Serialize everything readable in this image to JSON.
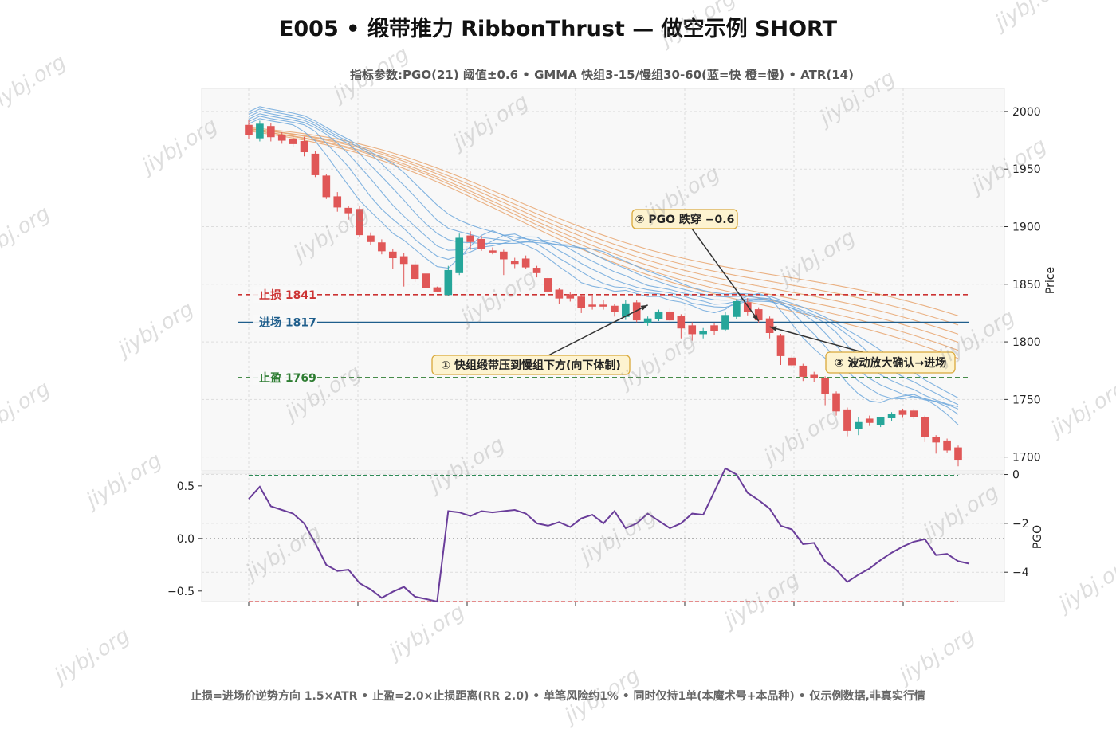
{
  "chart_data": {
    "type": "line",
    "title": "E005 • 缎带推力 RibbonThrust — 做空示例 SHORT",
    "subtitle": "指标参数:PGO(21) 阈值±0.6  •  GMMA 快组3-15/慢组30-60(蓝=快 橙=慢)  •  ATR(14)",
    "footer": "止损=进场价逆势方向 1.5×ATR  •  止盈=2.0×止损距离(RR 2.0)  •  单笔风险约1%  •  同时仅持1单(本魔术号+本品种)  •  仅示例数据,非真实行情",
    "watermark": "jiybj.org",
    "price_panel": {
      "ylabel": "Price",
      "ylim": [
        1688,
        2020
      ],
      "yticks": [
        "2000",
        "1950",
        "1900",
        "1850",
        "1800",
        "1750",
        "1700"
      ],
      "candles": [
        {
          "o": 1988,
          "h": 1993,
          "l": 1976,
          "c": 1980
        },
        {
          "o": 1977,
          "h": 1992,
          "l": 1974,
          "c": 1989
        },
        {
          "o": 1987,
          "h": 1990,
          "l": 1974,
          "c": 1978
        },
        {
          "o": 1979,
          "h": 1982,
          "l": 1972,
          "c": 1975
        },
        {
          "o": 1976,
          "h": 1979,
          "l": 1969,
          "c": 1972
        },
        {
          "o": 1974,
          "h": 1978,
          "l": 1961,
          "c": 1965
        },
        {
          "o": 1963,
          "h": 1966,
          "l": 1943,
          "c": 1945
        },
        {
          "o": 1944,
          "h": 1946,
          "l": 1924,
          "c": 1926
        },
        {
          "o": 1926,
          "h": 1930,
          "l": 1913,
          "c": 1917
        },
        {
          "o": 1916,
          "h": 1918,
          "l": 1906,
          "c": 1912
        },
        {
          "o": 1915,
          "h": 1918,
          "l": 1891,
          "c": 1893
        },
        {
          "o": 1892,
          "h": 1895,
          "l": 1884,
          "c": 1887
        },
        {
          "o": 1886,
          "h": 1889,
          "l": 1876,
          "c": 1879
        },
        {
          "o": 1878,
          "h": 1881,
          "l": 1863,
          "c": 1873
        },
        {
          "o": 1874,
          "h": 1877,
          "l": 1848,
          "c": 1868
        },
        {
          "o": 1867,
          "h": 1870,
          "l": 1852,
          "c": 1855
        },
        {
          "o": 1859,
          "h": 1861,
          "l": 1842,
          "c": 1847
        },
        {
          "o": 1847,
          "h": 1848,
          "l": 1843,
          "c": 1844
        },
        {
          "o": 1841,
          "h": 1866,
          "l": 1840,
          "c": 1862
        },
        {
          "o": 1860,
          "h": 1894,
          "l": 1858,
          "c": 1890
        },
        {
          "o": 1892,
          "h": 1896,
          "l": 1880,
          "c": 1887
        },
        {
          "o": 1889,
          "h": 1892,
          "l": 1879,
          "c": 1881
        },
        {
          "o": 1879,
          "h": 1882,
          "l": 1876,
          "c": 1878
        },
        {
          "o": 1878,
          "h": 1880,
          "l": 1858,
          "c": 1872
        },
        {
          "o": 1870,
          "h": 1873,
          "l": 1864,
          "c": 1868
        },
        {
          "o": 1872,
          "h": 1875,
          "l": 1863,
          "c": 1865
        },
        {
          "o": 1864,
          "h": 1866,
          "l": 1856,
          "c": 1860
        },
        {
          "o": 1855,
          "h": 1857,
          "l": 1841,
          "c": 1844
        },
        {
          "o": 1845,
          "h": 1847,
          "l": 1833,
          "c": 1838
        },
        {
          "o": 1841,
          "h": 1843,
          "l": 1835,
          "c": 1838
        },
        {
          "o": 1839,
          "h": 1841,
          "l": 1825,
          "c": 1830
        },
        {
          "o": 1832,
          "h": 1840,
          "l": 1828,
          "c": 1831
        },
        {
          "o": 1832,
          "h": 1836,
          "l": 1828,
          "c": 1831
        },
        {
          "o": 1831,
          "h": 1833,
          "l": 1822,
          "c": 1826
        },
        {
          "o": 1822,
          "h": 1836,
          "l": 1819,
          "c": 1833
        },
        {
          "o": 1834,
          "h": 1836,
          "l": 1817,
          "c": 1819
        },
        {
          "o": 1817,
          "h": 1822,
          "l": 1814,
          "c": 1820
        },
        {
          "o": 1820,
          "h": 1828,
          "l": 1818,
          "c": 1826
        },
        {
          "o": 1826,
          "h": 1829,
          "l": 1816,
          "c": 1819
        },
        {
          "o": 1822,
          "h": 1824,
          "l": 1803,
          "c": 1812
        },
        {
          "o": 1814,
          "h": 1817,
          "l": 1801,
          "c": 1807
        },
        {
          "o": 1807,
          "h": 1812,
          "l": 1803,
          "c": 1809
        },
        {
          "o": 1814,
          "h": 1816,
          "l": 1806,
          "c": 1810
        },
        {
          "o": 1811,
          "h": 1826,
          "l": 1809,
          "c": 1823
        },
        {
          "o": 1822,
          "h": 1837,
          "l": 1820,
          "c": 1835
        },
        {
          "o": 1834,
          "h": 1838,
          "l": 1823,
          "c": 1826
        },
        {
          "o": 1828,
          "h": 1830,
          "l": 1816,
          "c": 1819
        },
        {
          "o": 1820,
          "h": 1822,
          "l": 1803,
          "c": 1808
        },
        {
          "o": 1805,
          "h": 1807,
          "l": 1780,
          "c": 1788
        },
        {
          "o": 1786,
          "h": 1789,
          "l": 1778,
          "c": 1780
        },
        {
          "o": 1779,
          "h": 1781,
          "l": 1766,
          "c": 1770
        },
        {
          "o": 1771,
          "h": 1774,
          "l": 1765,
          "c": 1769
        },
        {
          "o": 1768,
          "h": 1770,
          "l": 1745,
          "c": 1755
        },
        {
          "o": 1755,
          "h": 1757,
          "l": 1736,
          "c": 1740
        },
        {
          "o": 1741,
          "h": 1743,
          "l": 1718,
          "c": 1723
        },
        {
          "o": 1725,
          "h": 1735,
          "l": 1719,
          "c": 1730
        },
        {
          "o": 1733,
          "h": 1736,
          "l": 1727,
          "c": 1730
        },
        {
          "o": 1728,
          "h": 1735,
          "l": 1726,
          "c": 1734
        },
        {
          "o": 1734,
          "h": 1739,
          "l": 1731,
          "c": 1737
        },
        {
          "o": 1740,
          "h": 1742,
          "l": 1734,
          "c": 1737
        },
        {
          "o": 1740,
          "h": 1742,
          "l": 1733,
          "c": 1735
        },
        {
          "o": 1734,
          "h": 1736,
          "l": 1713,
          "c": 1718
        },
        {
          "o": 1717,
          "h": 1719,
          "l": 1703,
          "c": 1713
        },
        {
          "o": 1714,
          "h": 1716,
          "l": 1704,
          "c": 1706
        },
        {
          "o": 1708,
          "h": 1710,
          "l": 1692,
          "c": 1698
        }
      ],
      "gmma_fast": [
        {
          "start": 1993,
          "end": 1736
        },
        {
          "start": 1992,
          "end": 1730
        },
        {
          "start": 1991,
          "end": 1724
        },
        {
          "start": 1990,
          "end": 1719
        },
        {
          "start": 1989,
          "end": 1714
        },
        {
          "start": 1988,
          "end": 1709
        }
      ],
      "gmma_slow": [
        {
          "start": 1986,
          "end": 1816
        },
        {
          "start": 1985,
          "end": 1808
        },
        {
          "start": 1985,
          "end": 1800
        },
        {
          "start": 1984,
          "end": 1793
        },
        {
          "start": 1984,
          "end": 1786
        },
        {
          "start": 1983,
          "end": 1779
        }
      ],
      "levels": [
        {
          "label": "止损 1841",
          "value": 1841,
          "color": "#cc3333",
          "style": "dashed"
        },
        {
          "label": "进场 1817",
          "value": 1817,
          "color": "#1f5e8c",
          "style": "solid"
        },
        {
          "label": "止盈 1769",
          "value": 1769,
          "color": "#2e7d32",
          "style": "dashed"
        }
      ],
      "annotations": [
        {
          "text": "① 快组缎带压到慢组下方(向下体制)",
          "bar": 36,
          "price": 1832
        },
        {
          "text": "② PGO 跌穿 −0.6",
          "bar": 46,
          "price": 1818
        },
        {
          "text": "③ 波动放大确认→进场",
          "bar": 47,
          "price": 1813
        }
      ]
    },
    "pgo_panel": {
      "ylabel": "PGO",
      "left_ylim": [
        -0.6,
        0.62
      ],
      "left_yticks": [
        "0.5",
        "0.0",
        "−0.5"
      ],
      "right_ylim": [
        -5.2,
        0.05
      ],
      "right_yticks": [
        "0",
        "−2",
        "−4"
      ],
      "threshold_upper": 0.6,
      "threshold_lower": -0.6,
      "values": [
        -1.0,
        -0.5,
        -1.3,
        -1.45,
        -1.6,
        -2.0,
        -2.8,
        -3.7,
        -3.95,
        -3.9,
        -4.45,
        -4.7,
        -5.05,
        -4.8,
        -4.6,
        -5.0,
        -5.1,
        -5.2,
        -1.5,
        -1.55,
        -1.7,
        -1.5,
        -1.55,
        -1.5,
        -1.45,
        -1.6,
        -2.0,
        -2.1,
        -1.95,
        -2.15,
        -1.8,
        -1.65,
        -2.0,
        -1.5,
        -2.2,
        -2.0,
        -1.6,
        -1.9,
        -2.2,
        -2.0,
        -1.6,
        -1.65,
        -0.7,
        0.25,
        0.0,
        -0.75,
        -1.05,
        -1.4,
        -2.1,
        -2.25,
        -2.85,
        -2.8,
        -3.55,
        -3.9,
        -4.4,
        -4.1,
        -3.85,
        -3.5,
        -3.2,
        -2.95,
        -2.75,
        -2.65,
        -3.3,
        -3.25,
        -3.55,
        -3.65
      ]
    }
  },
  "colors": {
    "bull": "#26a69a",
    "bear": "#e05757",
    "fast": "#6fa8dc",
    "slow": "#e69a5c",
    "pgo": "#6a3d9a",
    "panel_bg": "#f8f8f8",
    "grid": "#dddddd"
  }
}
